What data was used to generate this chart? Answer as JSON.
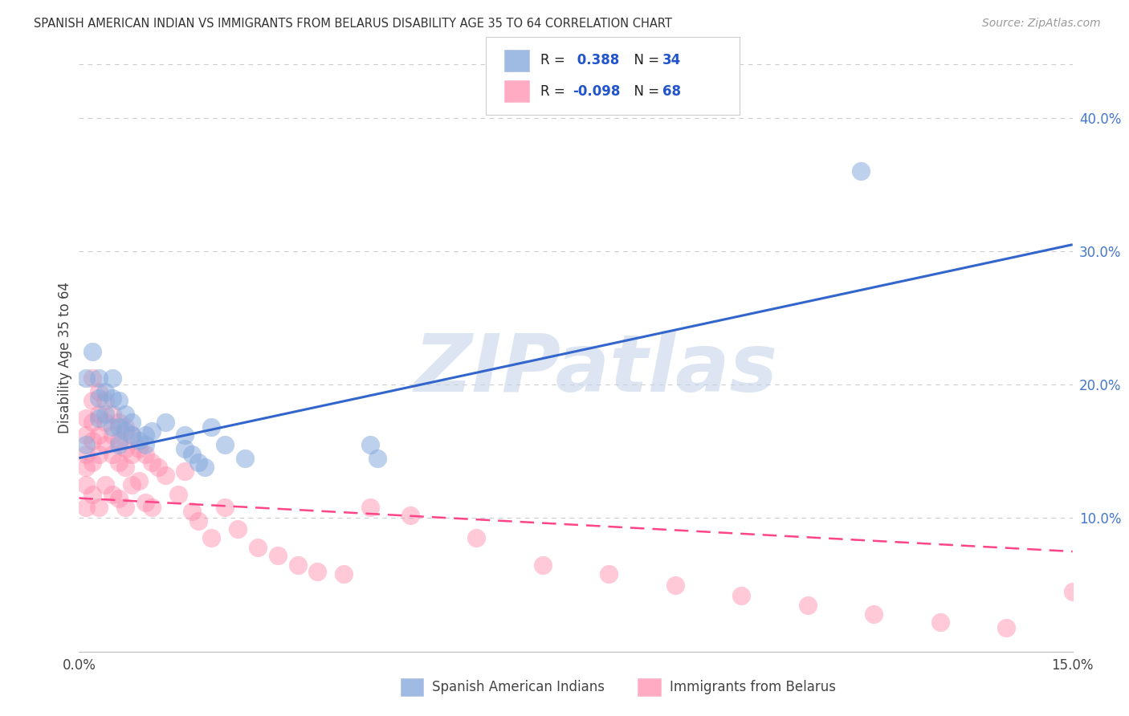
{
  "title": "SPANISH AMERICAN INDIAN VS IMMIGRANTS FROM BELARUS DISABILITY AGE 35 TO 64 CORRELATION CHART",
  "source": "Source: ZipAtlas.com",
  "ylabel": "Disability Age 35 to 64",
  "legend1_label": "Spanish American Indians",
  "legend2_label": "Immigrants from Belarus",
  "r1": 0.388,
  "n1": 34,
  "r2": -0.098,
  "n2": 68,
  "color1": "#88AADD",
  "color2": "#FF88AA",
  "trendline1_color": "#3366CC",
  "trendline2_color": "#FF4488",
  "xmin": 0.0,
  "xmax": 0.15,
  "ymin": 0.0,
  "ymax": 0.44,
  "yticks": [
    0.1,
    0.2,
    0.3,
    0.4
  ],
  "ytick_labels": [
    "10.0%",
    "20.0%",
    "30.0%",
    "40.0%"
  ],
  "xtick_labels": [
    "0.0%",
    "",
    "",
    "15.0%"
  ],
  "trendline1_x": [
    0.0,
    0.15
  ],
  "trendline1_y": [
    0.145,
    0.305
  ],
  "trendline2_x": [
    0.0,
    0.15
  ],
  "trendline2_y": [
    0.115,
    0.075
  ],
  "blue_dots_x": [
    0.001,
    0.001,
    0.002,
    0.003,
    0.003,
    0.003,
    0.004,
    0.004,
    0.005,
    0.005,
    0.005,
    0.006,
    0.006,
    0.006,
    0.007,
    0.007,
    0.008,
    0.008,
    0.009,
    0.01,
    0.01,
    0.011,
    0.013,
    0.016,
    0.016,
    0.017,
    0.018,
    0.019,
    0.02,
    0.022,
    0.025,
    0.044,
    0.045,
    0.118
  ],
  "blue_dots_y": [
    0.205,
    0.155,
    0.225,
    0.205,
    0.19,
    0.175,
    0.195,
    0.178,
    0.205,
    0.19,
    0.168,
    0.188,
    0.168,
    0.155,
    0.178,
    0.165,
    0.172,
    0.162,
    0.158,
    0.162,
    0.155,
    0.165,
    0.172,
    0.162,
    0.152,
    0.148,
    0.142,
    0.138,
    0.168,
    0.155,
    0.145,
    0.155,
    0.145,
    0.36
  ],
  "pink_dots_x": [
    0.001,
    0.001,
    0.001,
    0.001,
    0.001,
    0.001,
    0.002,
    0.002,
    0.002,
    0.002,
    0.002,
    0.002,
    0.003,
    0.003,
    0.003,
    0.003,
    0.003,
    0.004,
    0.004,
    0.004,
    0.004,
    0.005,
    0.005,
    0.005,
    0.005,
    0.006,
    0.006,
    0.006,
    0.006,
    0.007,
    0.007,
    0.007,
    0.007,
    0.008,
    0.008,
    0.008,
    0.009,
    0.009,
    0.01,
    0.01,
    0.011,
    0.011,
    0.012,
    0.013,
    0.015,
    0.016,
    0.017,
    0.018,
    0.02,
    0.022,
    0.024,
    0.027,
    0.03,
    0.033,
    0.036,
    0.04,
    0.044,
    0.05,
    0.06,
    0.07,
    0.08,
    0.09,
    0.1,
    0.11,
    0.12,
    0.13,
    0.14,
    0.15
  ],
  "pink_dots_y": [
    0.175,
    0.162,
    0.148,
    0.138,
    0.125,
    0.108,
    0.205,
    0.188,
    0.172,
    0.158,
    0.142,
    0.118,
    0.195,
    0.178,
    0.162,
    0.148,
    0.108,
    0.188,
    0.172,
    0.155,
    0.125,
    0.178,
    0.162,
    0.148,
    0.118,
    0.172,
    0.158,
    0.142,
    0.115,
    0.168,
    0.152,
    0.138,
    0.108,
    0.162,
    0.148,
    0.125,
    0.152,
    0.128,
    0.148,
    0.112,
    0.142,
    0.108,
    0.138,
    0.132,
    0.118,
    0.135,
    0.105,
    0.098,
    0.085,
    0.108,
    0.092,
    0.078,
    0.072,
    0.065,
    0.06,
    0.058,
    0.108,
    0.102,
    0.085,
    0.065,
    0.058,
    0.05,
    0.042,
    0.035,
    0.028,
    0.022,
    0.018,
    0.045
  ],
  "watermark_text": "ZIPatlas",
  "watermark_color": "#C5D5E8",
  "background_color": "#FFFFFF"
}
